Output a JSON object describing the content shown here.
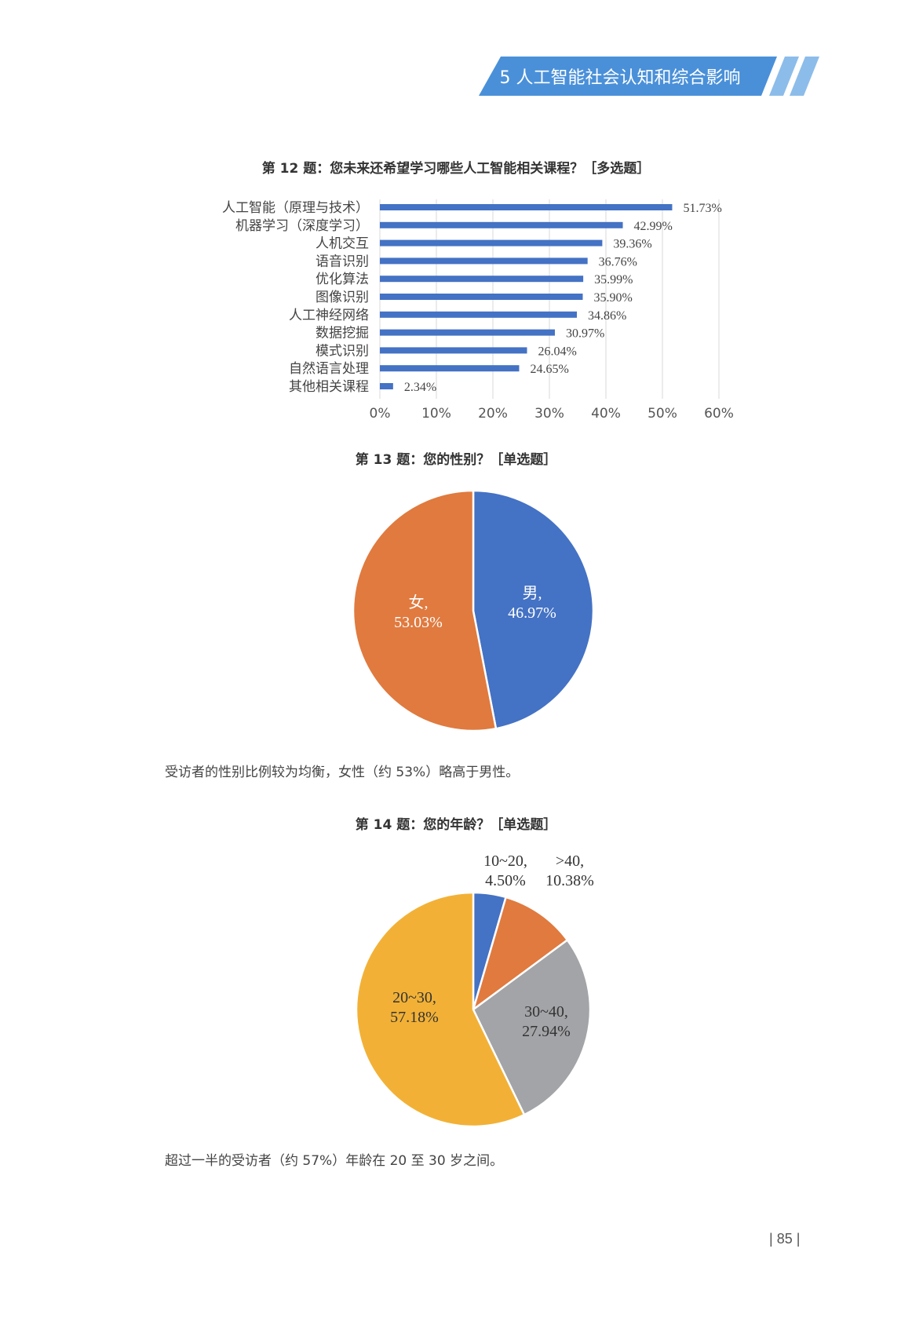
{
  "header": {
    "section_title": "5 人工智能社会认知和综合影响",
    "accent_color": "#4a90d9",
    "stripe_color": "#8cbdea"
  },
  "q12": {
    "title": "第 12 题：您未来还希望学习哪些人工智能相关课程？［多选题］"
  },
  "q13": {
    "title": "第 13 题：您的性别？［单选题］",
    "note": "受访者的性别比例较为均衡，女性（约 53%）略高于男性。"
  },
  "q14": {
    "title": "第 14 题：您的年龄？［单选题］",
    "note": "超过一半的受访者（约 57%）年龄在 20 至 30 岁之间。"
  },
  "page_number": "85",
  "chart_data": [
    {
      "type": "bar",
      "orientation": "horizontal",
      "title": "第 12 题：您未来还希望学习哪些人工智能相关课程？［多选题］",
      "categories": [
        "人工智能（原理与技术）",
        "机器学习（深度学习）",
        "人机交互",
        "语音识别",
        "优化算法",
        "图像识别",
        "人工神经网络",
        "数据挖掘",
        "模式识别",
        "自然语言处理",
        "其他相关课程"
      ],
      "values": [
        51.73,
        42.99,
        39.36,
        36.76,
        35.99,
        35.9,
        34.86,
        30.97,
        26.04,
        24.65,
        2.34
      ],
      "value_labels": [
        "51.73%",
        "42.99%",
        "39.36%",
        "36.76%",
        "35.99%",
        "35.90%",
        "34.86%",
        "30.97%",
        "26.04%",
        "24.65%",
        "2.34%"
      ],
      "xlim": [
        0,
        60
      ],
      "xticks": [
        0,
        10,
        20,
        30,
        40,
        50,
        60
      ],
      "xtick_labels": [
        "0%",
        "10%",
        "20%",
        "30%",
        "40%",
        "50%",
        "60%"
      ],
      "grid": "vertical",
      "color": "#4472c4"
    },
    {
      "type": "pie",
      "title": "第 13 题：您的性别？［单选题］",
      "slices": [
        {
          "name": "男",
          "value": 46.97,
          "label": "46.97%",
          "color": "#4472c4"
        },
        {
          "name": "女",
          "value": 53.03,
          "label": "53.03%",
          "color": "#e07a3f"
        }
      ]
    },
    {
      "type": "pie",
      "title": "第 14 题：您的年龄？［单选题］",
      "slices": [
        {
          "name": "10~20",
          "value": 4.5,
          "label": "4.50%",
          "color": "#4472c4"
        },
        {
          "name": ">40",
          "value": 10.38,
          "label": "10.38%",
          "color": "#e07a3f"
        },
        {
          "name": "30~40",
          "value": 27.94,
          "label": "27.94%",
          "color": "#a3a4a7"
        },
        {
          "name": "20~30",
          "value": 57.18,
          "label": "57.18%",
          "color": "#f2b136"
        }
      ]
    }
  ]
}
